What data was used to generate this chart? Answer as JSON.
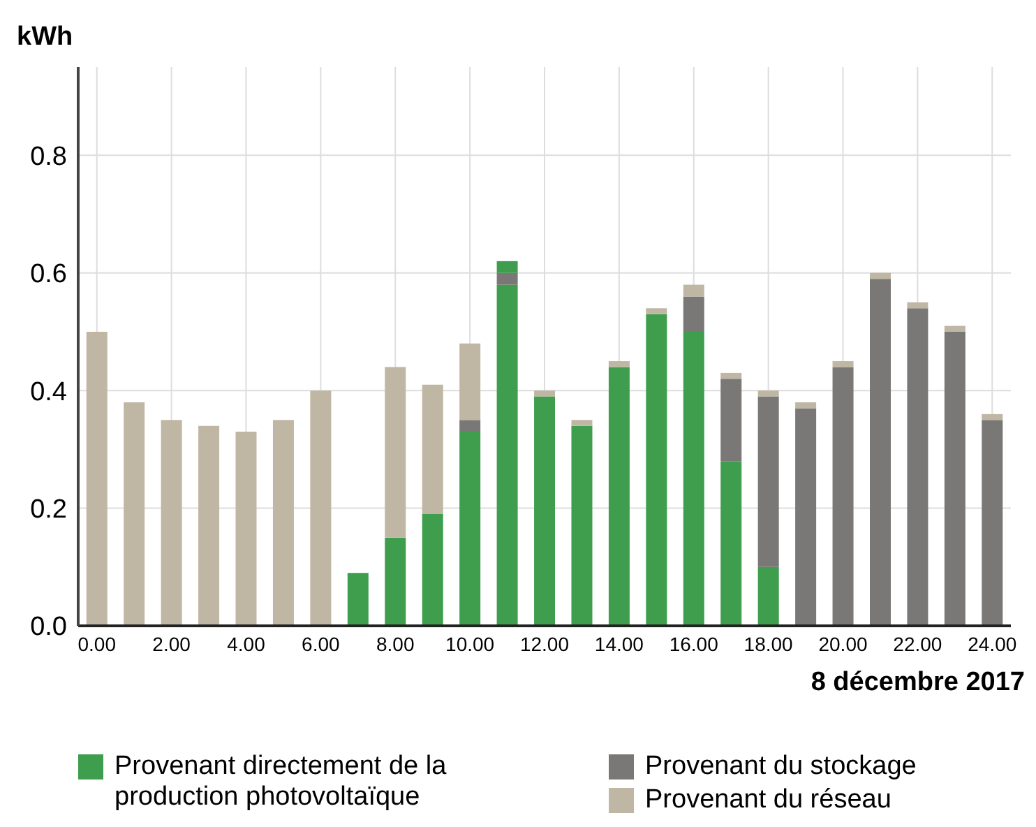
{
  "chart_data": {
    "type": "bar",
    "stacked": true,
    "ylabel": "kWh",
    "xlabel": "8 décembre 2017",
    "categories": [
      "0.00",
      null,
      "2.00",
      null,
      "4.00",
      null,
      "6.00",
      null,
      "8.00",
      null,
      "10.00",
      null,
      "12.00",
      null,
      "14.00",
      null,
      "16.00",
      null,
      "18.00",
      null,
      "20.00",
      null,
      "22.00",
      null,
      "24.00"
    ],
    "series": [
      {
        "name": "Provenant directement de la production photovoltaïque",
        "color": "#3f9e4d",
        "values": [
          0,
          0,
          0,
          0,
          0,
          0,
          0,
          0.09,
          0.15,
          0.19,
          0.33,
          0.58,
          0.39,
          0.34,
          0.44,
          0.53,
          0.5,
          0.28,
          0.1,
          0,
          0,
          0,
          0,
          0,
          0
        ]
      },
      {
        "name": "Provenant du stockage",
        "color": "#7a7876",
        "values": [
          0,
          0,
          0,
          0,
          0,
          0,
          0,
          0,
          0,
          0,
          0.02,
          0.02,
          0,
          0,
          0,
          0,
          0.06,
          0.14,
          0.29,
          0.37,
          0.44,
          0.59,
          0.54,
          0.5,
          0.35
        ]
      },
      {
        "name": "Provenant du réseau",
        "color": "#c0b6a4",
        "values": [
          0.5,
          0.38,
          0.35,
          0.34,
          0.33,
          0.35,
          0.4,
          0,
          0.29,
          0.22,
          0.13,
          0,
          0.01,
          0.01,
          0.01,
          0.01,
          0.02,
          0.01,
          0.01,
          0.01,
          0.01,
          0.01,
          0.01,
          0.01,
          0.01
        ]
      },
      {
        "color": "#3f9e4d",
        "values": [
          0,
          0,
          0,
          0,
          0,
          0,
          0,
          0,
          0,
          0,
          0,
          0.02,
          0,
          0,
          0,
          0,
          0,
          0,
          0,
          0,
          0,
          0,
          0,
          0,
          0
        ]
      }
    ],
    "ylim": [
      0,
      0.95
    ],
    "yticks": [
      {
        "value": 0,
        "label": "0.0"
      },
      0.2,
      0.4,
      0.6,
      0.8
    ],
    "grid": true,
    "legend": "bottom"
  }
}
